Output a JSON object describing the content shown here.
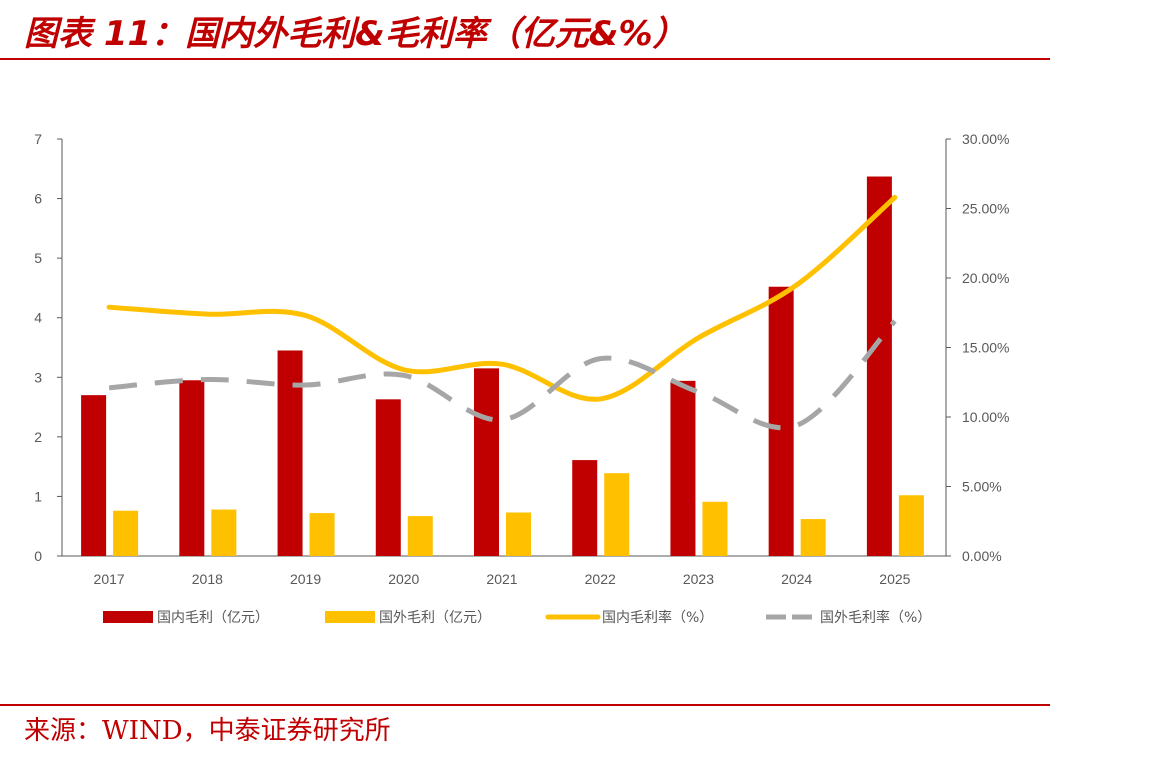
{
  "header": {
    "title": "图表 11：国内外毛利&毛利率（亿元&%）"
  },
  "footer": {
    "source": "来源：WIND，中泰证券研究所"
  },
  "chart_data": {
    "type": "bar",
    "categories": [
      "2017",
      "2018",
      "2019",
      "2020",
      "2021",
      "2022",
      "2023",
      "2024",
      "2025"
    ],
    "series": [
      {
        "name": "国内毛利（亿元）",
        "kind": "bar",
        "axis": "left",
        "color": "#c00000",
        "values": [
          2.7,
          2.95,
          3.45,
          2.63,
          3.15,
          1.61,
          2.94,
          4.52,
          6.37
        ]
      },
      {
        "name": "国外毛利（亿元）",
        "kind": "bar",
        "axis": "left",
        "color": "#ffc000",
        "values": [
          0.76,
          0.78,
          0.72,
          0.67,
          0.73,
          1.39,
          0.91,
          0.62,
          1.02
        ]
      },
      {
        "name": "国内毛利率（%）",
        "kind": "line",
        "axis": "right",
        "color": "#ffc000",
        "values": [
          17.9,
          17.4,
          17.3,
          13.4,
          13.8,
          11.3,
          15.7,
          19.5,
          25.8
        ]
      },
      {
        "name": "国外毛利率（%）",
        "kind": "dashed-line",
        "axis": "right",
        "color": "#a6a6a6",
        "values": [
          12.1,
          12.7,
          12.3,
          13.0,
          9.8,
          14.2,
          11.8,
          9.4,
          16.9
        ]
      }
    ],
    "y_left": {
      "min": 0,
      "max": 7,
      "ticks": [
        "0",
        "1",
        "2",
        "3",
        "4",
        "5",
        "6",
        "7"
      ]
    },
    "y_right": {
      "min": 0,
      "max": 30,
      "ticks": [
        "0.00%",
        "5.00%",
        "10.00%",
        "15.00%",
        "20.00%",
        "25.00%",
        "30.00%"
      ]
    },
    "grid": false,
    "legend": "bottom"
  }
}
